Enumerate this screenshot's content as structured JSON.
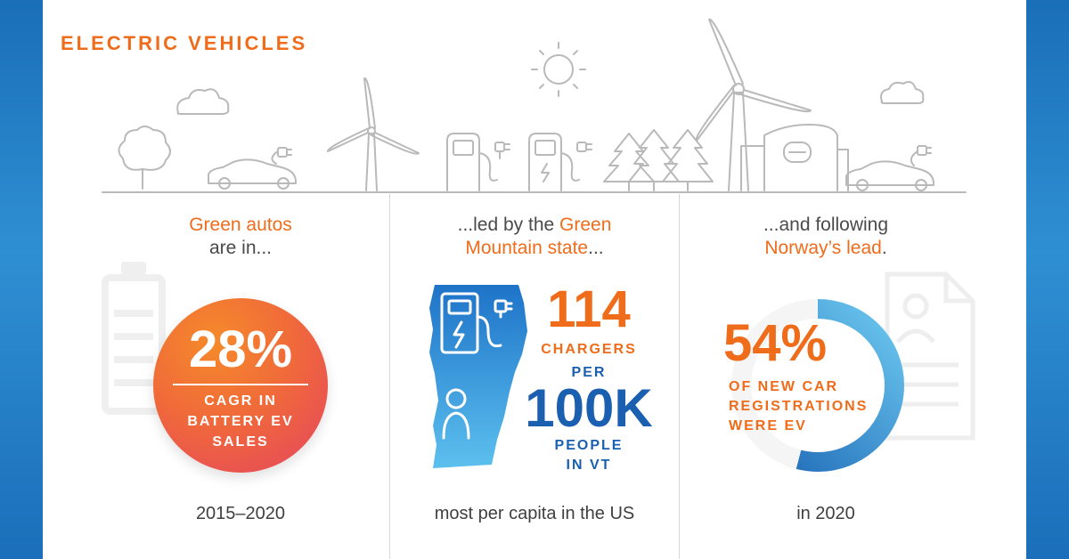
{
  "title": "ELECTRIC VEHICLES",
  "colors": {
    "orange": "#ef6c1b",
    "blue": "#1a5fb0",
    "line": "#b9b9b9",
    "frame_blue": "#1f78c4"
  },
  "icons": [
    "cloud-icon",
    "tree-icon",
    "car-icon",
    "plug-icon",
    "wind-turbine-icon",
    "sun-icon",
    "charging-station-icon",
    "pine-trees-icon",
    "building-icon",
    "battery-icon",
    "document-icon",
    "person-icon",
    "vermont-map-icon"
  ],
  "panels": [
    {
      "heading_orange": "Green autos",
      "heading_rest": "are in...",
      "stat_value": "28%",
      "stat_lines": [
        "CAGR IN",
        "BATTERY EV",
        "SALES"
      ],
      "caption": "2015–2020"
    },
    {
      "heading_gray_1": "...led by the ",
      "heading_orange_1": "Green",
      "heading_orange_2": "Mountain state",
      "heading_gray_2": "...",
      "stat_value": "114",
      "stat_label_1": "CHARGERS",
      "stat_label_2": "PER",
      "stat_value_2": "100K",
      "stat_label_3": "PEOPLE",
      "stat_label_4": "IN VT",
      "caption": "most per capita in the US"
    },
    {
      "heading_gray_1": "...and following",
      "heading_orange": "Norway’s lead",
      "heading_gray_2": ".",
      "stat_value": "54%",
      "stat_lines": [
        "OF NEW CAR",
        "REGISTRATIONS",
        "WERE EV"
      ],
      "caption": "in 2020",
      "ring_fraction": 0.54
    }
  ]
}
